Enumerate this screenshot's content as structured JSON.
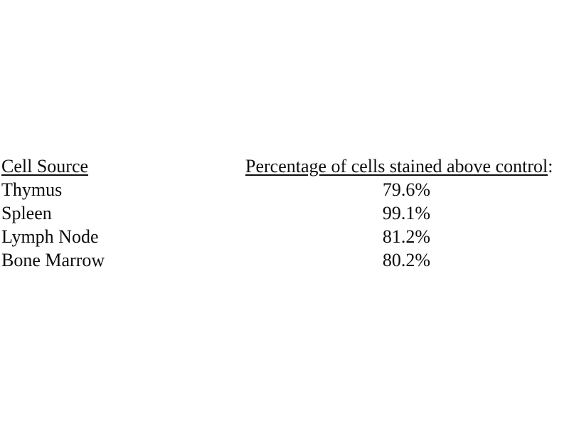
{
  "page": {
    "background_color": "#ffffff",
    "text_color": "#0d0d0d"
  },
  "table": {
    "columns": [
      {
        "header": "Cell Source",
        "header_suffix": ""
      },
      {
        "header": "Percentage of cells stained above control",
        "header_suffix": ":"
      }
    ],
    "rows": [
      {
        "cell_source": "Thymus",
        "percentage": "79.6%"
      },
      {
        "cell_source": "Spleen",
        "percentage": "99.1%"
      },
      {
        "cell_source": "Lymph Node",
        "percentage": "81.2%"
      },
      {
        "cell_source": "Bone Marrow",
        "percentage": "80.2%"
      }
    ]
  }
}
